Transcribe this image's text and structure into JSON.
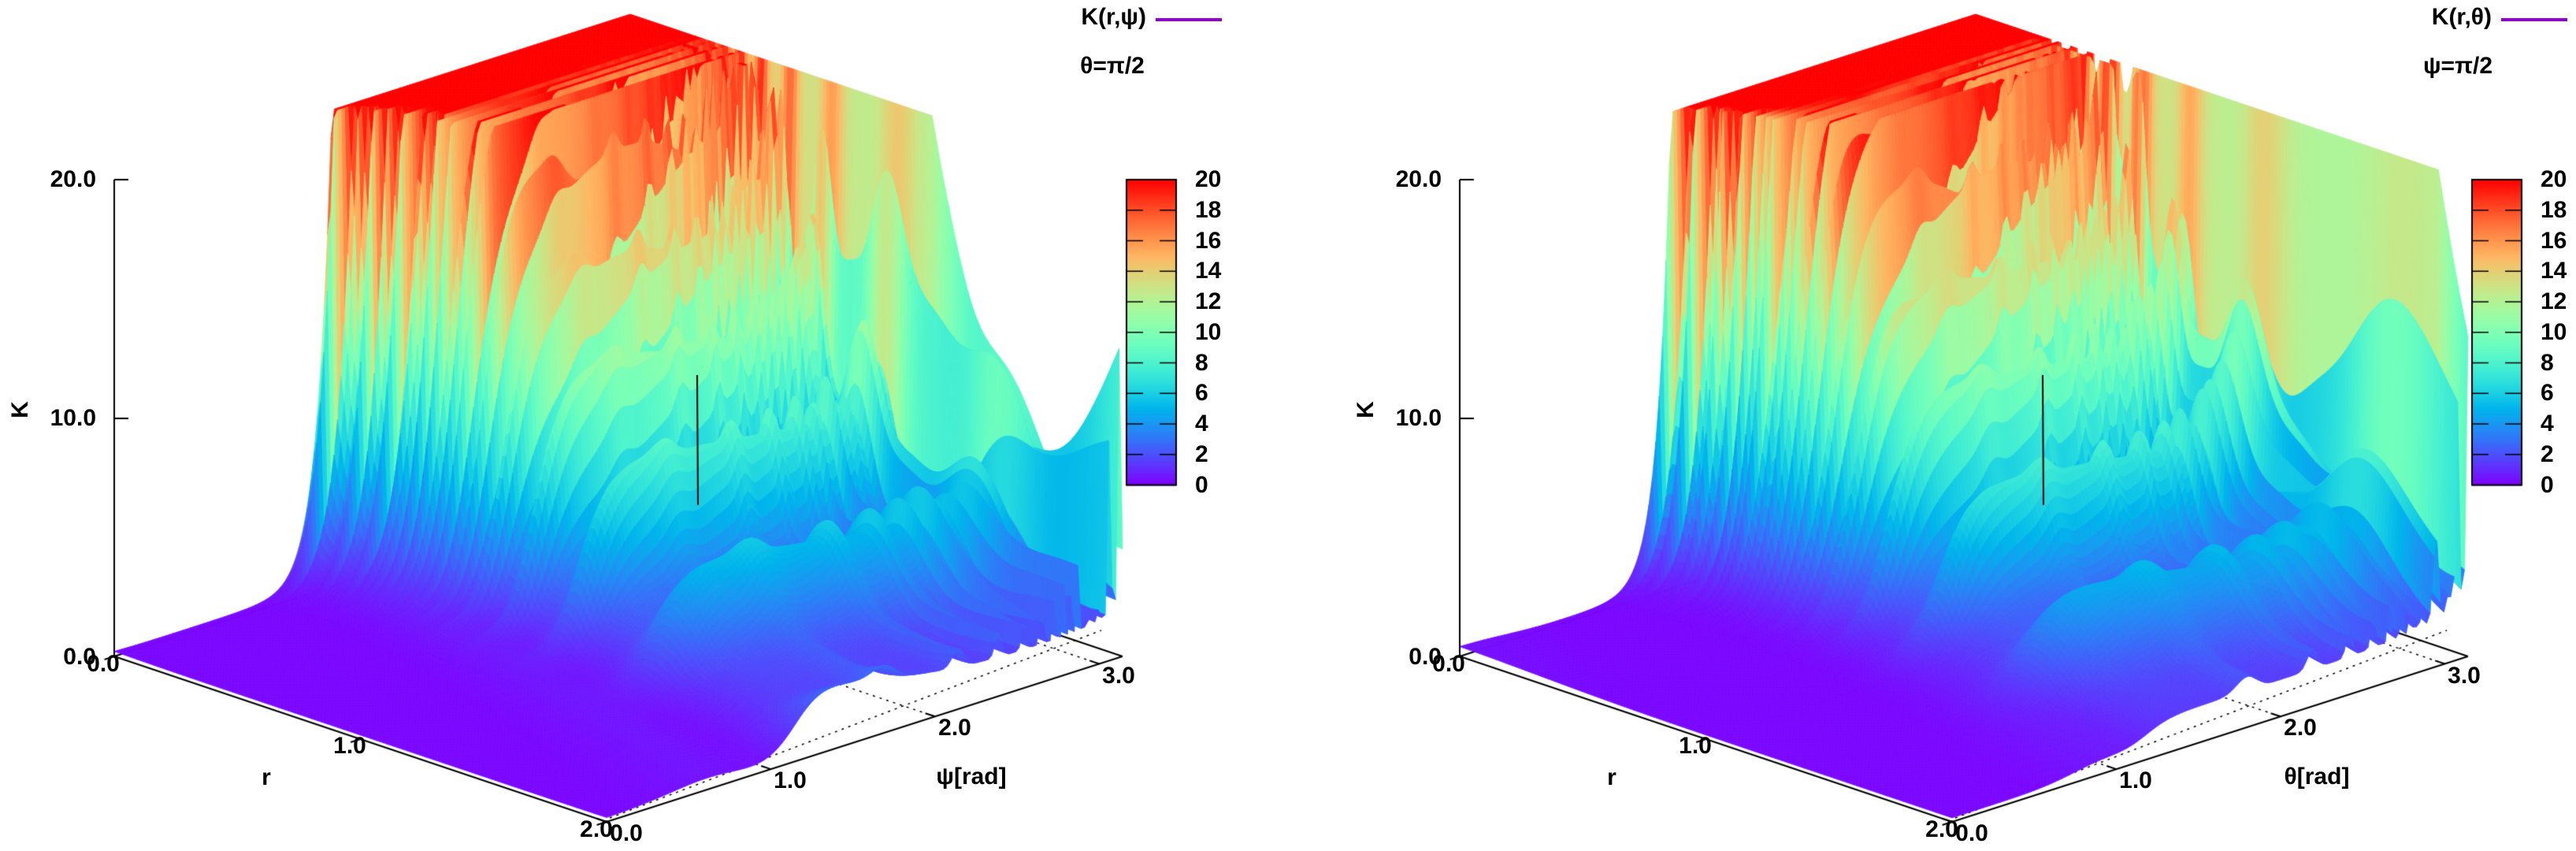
{
  "figure": {
    "background": "#ffffff"
  },
  "colors": {
    "legend_line": "#9400d3",
    "axis": "#000000",
    "surface_top_clip": "#ff0000",
    "basin": "#7c06ff"
  },
  "panels": [
    {
      "legend": {
        "series": "K(r,ψ)",
        "condition": "θ=π/2"
      },
      "axes": {
        "z": {
          "name": "K",
          "ticks": [
            "0.0",
            "10.0",
            "20.0"
          ]
        },
        "r": {
          "name": "r",
          "ticks": [
            "0.0",
            "1.0",
            "2.0"
          ]
        },
        "angle": {
          "name": "ψ[rad]",
          "ticks": [
            "0.0",
            "1.0",
            "2.0",
            "3.0"
          ]
        }
      },
      "colorbar": {
        "labels": [
          "0",
          "2",
          "4",
          "6",
          "8",
          "10",
          "12",
          "14",
          "16",
          "18",
          "20"
        ]
      }
    },
    {
      "legend": {
        "series": "K(r,θ)",
        "condition": "ψ=π/2"
      },
      "axes": {
        "z": {
          "name": "K",
          "ticks": [
            "0.0",
            "10.0",
            "20.0"
          ]
        },
        "r": {
          "name": "r",
          "ticks": [
            "0.0",
            "1.0",
            "2.0"
          ]
        },
        "angle": {
          "name": "θ[rad]",
          "ticks": [
            "0.0",
            "1.0",
            "2.0",
            "3.0"
          ]
        }
      },
      "colorbar": {
        "labels": [
          "0",
          "2",
          "4",
          "6",
          "8",
          "10",
          "12",
          "14",
          "16",
          "18",
          "20"
        ]
      }
    }
  ],
  "chart_data": {
    "type": "surface",
    "layout": "two gnuplot pm3d 3D surface plots side by side on white background, each with a vertical rainbow colorbar on its right",
    "palette": {
      "name": "rainbow (gnuplot rgbformulae 33,13,10)",
      "stops": {
        "0": "#8006ff",
        "2": "#4d4ffc",
        "4": "#1996f3",
        "6": "#1acfe3",
        "8": "#4df2cf",
        "10": "#80ffb4",
        "12": "#b3f296",
        "14": "#e6cf73",
        "16": "#ff964d",
        "18": "#ff4f28",
        "20": "#ff0000"
      }
    },
    "charts": [
      {
        "title": "K(r,ψ)",
        "fixed": "θ=π/2",
        "xlabel": "r",
        "x_range": [
          0,
          2
        ],
        "x_ticks": [
          0.0,
          1.0,
          2.0
        ],
        "ylabel": "ψ[rad]",
        "y_range": [
          0,
          3.1416
        ],
        "y_ticks": [
          0.0,
          1.0,
          2.0,
          3.0
        ],
        "zlabel": "K",
        "z_range": [
          0,
          20
        ],
        "z_ticks": [
          0.0,
          10.0,
          20.0
        ],
        "z_clipped_at": 20,
        "colorbar_range": [
          0,
          20
        ],
        "colorbar_ticks": [
          0,
          2,
          4,
          6,
          8,
          10,
          12,
          14,
          16,
          18,
          20
        ],
        "grid": "dotted base grid at axis ticks",
        "description": "K≈0 flat basin for ψ<π/2 at all r; K rises steeply (clipped at 20) as r→0 for ψ>π/2 and as ψ→π for all r, with dense high-frequency oscillatory spikes (needles) near both divergences; one thin dark mesh-crack artifact near the middle of the surface",
        "approx_grid": {
          "r": [
            0.01,
            0.25,
            0.5,
            0.75,
            1.0,
            1.25,
            1.5,
            1.75,
            2.0
          ],
          "angle": [
            0,
            0.39,
            0.79,
            1.18,
            1.57,
            1.96,
            2.36,
            2.75,
            3.14
          ],
          "K": [
            [
              0.2,
              0.2,
              0.3,
              0.5,
              10,
              20,
              20,
              20,
              20
            ],
            [
              0.2,
              0.2,
              0.3,
              0.4,
              6,
              20,
              20,
              20,
              20
            ],
            [
              0.2,
              0.2,
              0.2,
              0.4,
              4,
              15,
              16,
              17,
              20
            ],
            [
              0.2,
              0.2,
              0.2,
              0.3,
              3,
              9,
              10,
              11,
              14
            ],
            [
              0.2,
              0.2,
              0.2,
              0.3,
              2,
              6,
              7,
              7,
              10
            ],
            [
              0.2,
              0.2,
              0.2,
              0.3,
              1.5,
              4,
              5,
              5,
              8
            ],
            [
              0.2,
              0.2,
              0.2,
              0.3,
              1.2,
              3,
              3.5,
              4,
              6
            ],
            [
              0.2,
              0.2,
              0.2,
              0.3,
              1,
              2.5,
              3,
              3,
              5
            ],
            [
              0.2,
              0.2,
              0.2,
              0.3,
              0.8,
              2,
              2.5,
              2.5,
              4
            ]
          ]
        }
      },
      {
        "title": "K(r,θ)",
        "fixed": "ψ=π/2",
        "xlabel": "r",
        "x_range": [
          0,
          2
        ],
        "x_ticks": [
          0.0,
          1.0,
          2.0
        ],
        "ylabel": "θ[rad]",
        "y_range": [
          0,
          3.1416
        ],
        "y_ticks": [
          0.0,
          1.0,
          2.0,
          3.0
        ],
        "zlabel": "K",
        "z_range": [
          0,
          20
        ],
        "z_ticks": [
          0.0,
          10.0,
          20.0
        ],
        "z_clipped_at": 20,
        "colorbar_range": [
          0,
          20
        ],
        "colorbar_ticks": [
          0,
          2,
          4,
          6,
          8,
          10,
          12,
          14,
          16,
          18,
          20
        ],
        "grid": "dotted base grid at axis ticks",
        "description": "Visually near-identical to the left plot with θ in place of ψ: K≈0 basin for θ<π/2, divergent spiked walls (clipped at 20) as r→0 for θ>π/2 and as θ→π",
        "approx_grid": {
          "r": [
            0.01,
            0.25,
            0.5,
            0.75,
            1.0,
            1.25,
            1.5,
            1.75,
            2.0
          ],
          "angle": [
            0,
            0.39,
            0.79,
            1.18,
            1.57,
            1.96,
            2.36,
            2.75,
            3.14
          ],
          "K": [
            [
              0.2,
              0.2,
              0.3,
              0.5,
              10,
              20,
              20,
              20,
              20
            ],
            [
              0.2,
              0.2,
              0.3,
              0.4,
              6,
              20,
              20,
              20,
              20
            ],
            [
              0.2,
              0.2,
              0.2,
              0.4,
              4,
              15,
              16,
              17,
              20
            ],
            [
              0.2,
              0.2,
              0.2,
              0.3,
              3,
              9,
              10,
              11,
              14
            ],
            [
              0.2,
              0.2,
              0.2,
              0.3,
              2,
              6,
              7,
              7,
              10
            ],
            [
              0.2,
              0.2,
              0.2,
              0.3,
              1.5,
              4,
              5,
              5,
              8
            ],
            [
              0.2,
              0.2,
              0.2,
              0.3,
              1.2,
              3,
              3.5,
              4,
              6
            ],
            [
              0.2,
              0.2,
              0.2,
              0.3,
              1,
              2.5,
              3,
              3,
              5
            ],
            [
              0.2,
              0.2,
              0.2,
              0.3,
              0.8,
              2,
              2.5,
              2.5,
              4
            ]
          ]
        }
      }
    ]
  }
}
